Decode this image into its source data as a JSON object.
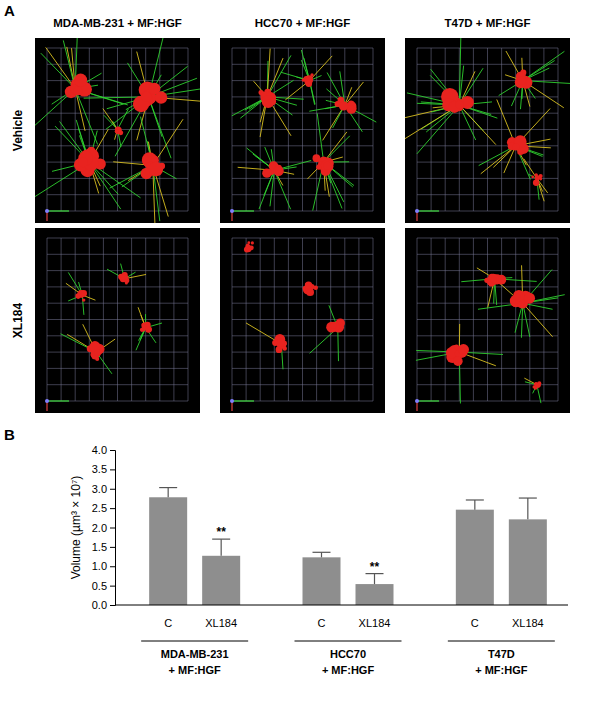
{
  "panel_a": {
    "label": "A",
    "columns": [
      "MDA-MB-231 + MF:HGF",
      "HCC70 + MF:HGF",
      "T47D + MF:HGF"
    ],
    "rows": [
      "Vehicle",
      "XL184"
    ]
  },
  "panel_b": {
    "label": "B"
  },
  "chart_data": {
    "type": "bar",
    "y_label": "Volume (µm³ × 10⁷)",
    "categories": [
      "C",
      "XL184",
      "C",
      "XL184",
      "C",
      "XL184"
    ],
    "groups": [
      [
        "MDA-MB-231",
        "+ MF:HGF"
      ],
      [
        "HCC70",
        "+ MF:HGF"
      ],
      [
        "T47D",
        "+ MF:HGF"
      ]
    ],
    "values": [
      2.78,
      1.27,
      1.23,
      0.54,
      2.46,
      2.21
    ],
    "errors": [
      0.25,
      0.43,
      0.13,
      0.27,
      0.25,
      0.55
    ],
    "significance": [
      null,
      "**",
      null,
      "**",
      null,
      null
    ],
    "color": "#8e8e8e",
    "ylim": [
      0,
      4
    ],
    "yticks": [
      {
        "value": 0,
        "label": "0.0"
      },
      0.5,
      {
        "value": 1,
        "label": "1.0"
      },
      1.5,
      {
        "value": 2,
        "label": "2.0"
      },
      2.5,
      {
        "value": 3,
        "label": "3.0"
      },
      3.5,
      {
        "value": 4,
        "label": "4.0"
      }
    ],
    "grid": false
  }
}
